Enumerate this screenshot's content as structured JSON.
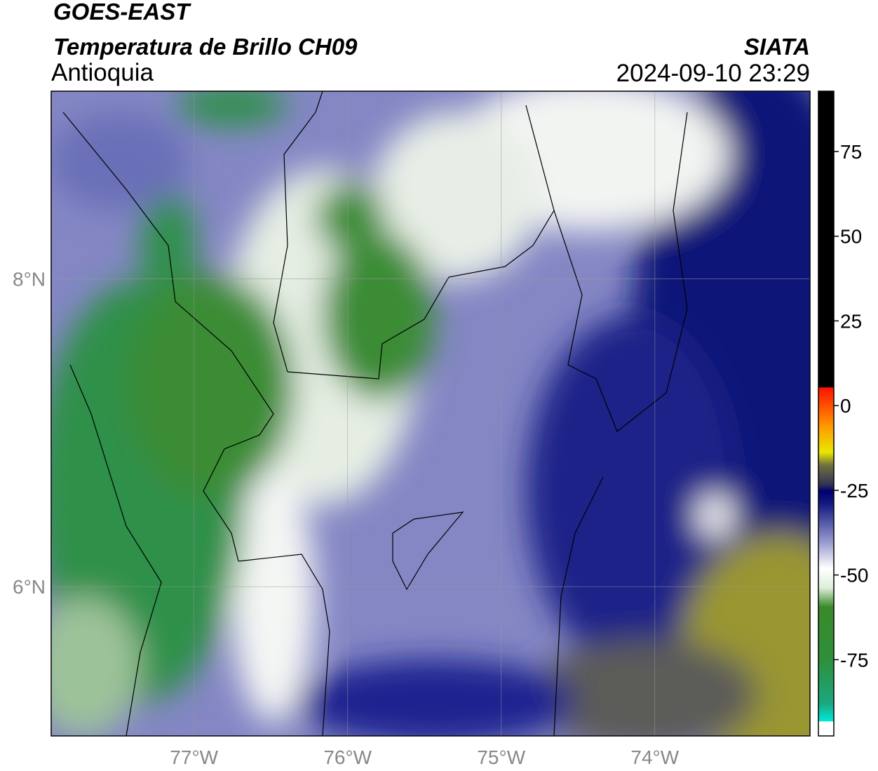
{
  "header": {
    "title": "GOES-EAST",
    "subtitle": "Temperatura de Brillo CH09",
    "region": "Antioquia",
    "source": "SIATA",
    "datetime": "2024-09-10 23:29"
  },
  "map": {
    "xlim": [
      -77.93,
      -72.99
    ],
    "ylim": [
      5.03,
      9.22
    ],
    "xticks": [
      {
        "value": -77,
        "label": "77°W"
      },
      {
        "value": -76,
        "label": "76°W"
      },
      {
        "value": -75,
        "label": "75°W"
      },
      {
        "value": -74,
        "label": "74°W"
      }
    ],
    "yticks": [
      {
        "value": 6,
        "label": "6°N"
      },
      {
        "value": 8,
        "label": "8°N"
      }
    ]
  },
  "colorbar": {
    "lim": [
      -97.5,
      92.8
    ],
    "ticks": [
      75,
      50,
      25,
      0,
      -25,
      -50,
      -75
    ]
  }
}
